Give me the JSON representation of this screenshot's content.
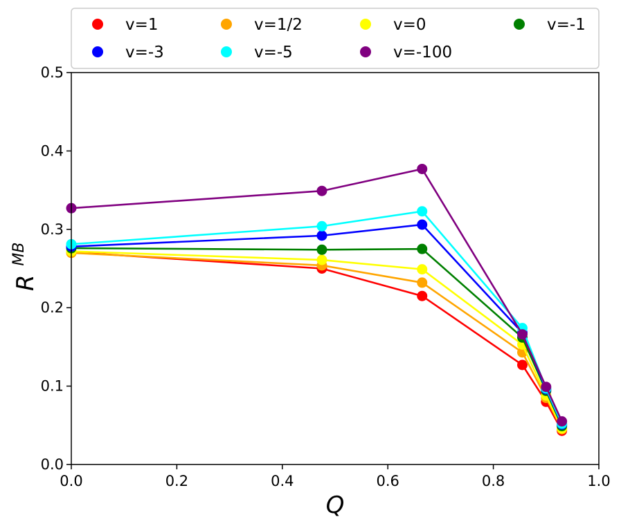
{
  "chart_data": {
    "type": "line",
    "title": "",
    "xlabel": "Q",
    "ylabel": "R",
    "ylabel_superscript": "MB",
    "xlim": [
      0.0,
      1.0
    ],
    "ylim": [
      0.0,
      0.5
    ],
    "x_ticks": [
      "0.0",
      "0.2",
      "0.4",
      "0.6",
      "0.8",
      "1.0"
    ],
    "y_ticks": [
      "0.0",
      "0.1",
      "0.2",
      "0.3",
      "0.4",
      "0.5"
    ],
    "x_tick_values": [
      0.0,
      0.2,
      0.4,
      0.6,
      0.8,
      1.0
    ],
    "y_tick_values": [
      0.0,
      0.1,
      0.2,
      0.3,
      0.4,
      0.5
    ],
    "grid": false,
    "legend_position": "top",
    "x": [
      0.0,
      0.475,
      0.665,
      0.855,
      0.9,
      0.93
    ],
    "series": [
      {
        "name": "v=1",
        "color": "#ff0000",
        "values": [
          0.271,
          0.25,
          0.215,
          0.127,
          0.08,
          0.043
        ]
      },
      {
        "name": "v=1/2",
        "color": "#ffa500",
        "values": [
          0.27,
          0.254,
          0.232,
          0.143,
          0.085,
          0.045
        ]
      },
      {
        "name": "v=0",
        "color": "#ffff00",
        "values": [
          0.272,
          0.261,
          0.249,
          0.153,
          0.088,
          0.046
        ]
      },
      {
        "name": "v=-1",
        "color": "#008000",
        "values": [
          0.276,
          0.274,
          0.275,
          0.162,
          0.094,
          0.049
        ]
      },
      {
        "name": "v=-3",
        "color": "#0000ff",
        "values": [
          0.278,
          0.292,
          0.306,
          0.168,
          0.096,
          0.051
        ]
      },
      {
        "name": "v=-5",
        "color": "#00ffff",
        "values": [
          0.281,
          0.304,
          0.323,
          0.174,
          0.097,
          0.052
        ]
      },
      {
        "name": "v=-100",
        "color": "#800080",
        "values": [
          0.327,
          0.349,
          0.377,
          0.166,
          0.099,
          0.055
        ]
      }
    ],
    "legend_order": [
      "v=1",
      "v=1/2",
      "v=0",
      "v=-1",
      "v=-3",
      "v=-5",
      "v=-100"
    ]
  }
}
